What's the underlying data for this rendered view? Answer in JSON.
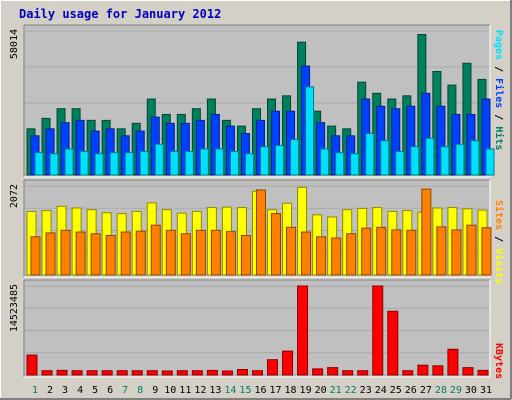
{
  "chart_data": [
    {
      "type": "bar",
      "title": "Daily usage for January 2012",
      "ymax_label": "58014",
      "ylim": [
        0,
        58014
      ],
      "categories": [
        "1",
        "2",
        "3",
        "4",
        "5",
        "6",
        "7",
        "8",
        "9",
        "10",
        "11",
        "12",
        "13",
        "14",
        "15",
        "16",
        "17",
        "18",
        "19",
        "20",
        "21",
        "22",
        "23",
        "24",
        "25",
        "26",
        "27",
        "28",
        "29",
        "30",
        "31"
      ],
      "weekend_days": [
        "1",
        "7",
        "8",
        "14",
        "15",
        "21",
        "22",
        "28",
        "29"
      ],
      "legend": [
        "Pages",
        "Files",
        "Hits"
      ],
      "series": [
        {
          "name": "Hits",
          "color": "#00805c",
          "values": [
            18600,
            22800,
            26700,
            26700,
            22000,
            22000,
            18600,
            20800,
            30600,
            24400,
            24400,
            26700,
            30600,
            22000,
            19700,
            26700,
            30600,
            31900,
            53500,
            25700,
            19700,
            18600,
            37400,
            32900,
            30600,
            31900,
            56600,
            41700,
            36200,
            45000,
            38500
          ]
        },
        {
          "name": "Files",
          "color": "#0040ff",
          "values": [
            15800,
            18600,
            21100,
            22000,
            17700,
            18600,
            15800,
            17700,
            23300,
            20800,
            20800,
            22000,
            24400,
            19700,
            16700,
            22000,
            25700,
            25700,
            43900,
            21100,
            15800,
            15800,
            30600,
            27700,
            26700,
            27700,
            32900,
            27700,
            24400,
            24400,
            30600
          ]
        },
        {
          "name": "Pages",
          "color": "#00e0ff",
          "values": [
            9000,
            8600,
            10500,
            9500,
            8600,
            9000,
            9000,
            9500,
            12400,
            9500,
            9500,
            10500,
            10500,
            9500,
            8600,
            11400,
            11900,
            14300,
            35500,
            10500,
            9000,
            8600,
            16700,
            13800,
            9500,
            11400,
            14800,
            11400,
            12400,
            13800,
            10500
          ]
        }
      ],
      "grid": true
    },
    {
      "type": "bar",
      "ymax_label": "2072",
      "ylim": [
        0,
        2072
      ],
      "legend": [
        "Sites",
        "Visits"
      ],
      "series": [
        {
          "name": "Visits",
          "color": "#ffff00",
          "values": [
            1480,
            1500,
            1600,
            1560,
            1520,
            1450,
            1430,
            1480,
            1680,
            1520,
            1440,
            1480,
            1570,
            1580,
            1570,
            1950,
            1520,
            1670,
            2040,
            1400,
            1350,
            1520,
            1550,
            1570,
            1480,
            1500,
            1460,
            1560,
            1570,
            1540,
            1510
          ]
        },
        {
          "name": "Sites",
          "color": "#ff8000",
          "values": [
            890,
            980,
            1040,
            1000,
            960,
            920,
            1000,
            1020,
            1160,
            1040,
            960,
            1040,
            1040,
            1010,
            920,
            1980,
            1430,
            1110,
            1000,
            890,
            860,
            960,
            1090,
            1110,
            1050,
            1040,
            2000,
            1120,
            1050,
            1160,
            1100
          ]
        }
      ],
      "grid": true
    },
    {
      "type": "bar",
      "ymax_label": "14523485",
      "ylim": [
        0,
        14523485
      ],
      "legend": [
        "KBytes"
      ],
      "series": [
        {
          "name": "KBytes",
          "color": "#ff0000",
          "values": [
            3250000,
            700000,
            750000,
            700000,
            700000,
            700000,
            700000,
            700000,
            700000,
            650000,
            700000,
            700000,
            750000,
            650000,
            900000,
            700000,
            2500000,
            3900000,
            14523485,
            1000000,
            1200000,
            700000,
            700000,
            14523485,
            10400000,
            700000,
            1600000,
            1500000,
            4200000,
            1200000,
            750000
          ]
        }
      ],
      "grid": true
    }
  ]
}
